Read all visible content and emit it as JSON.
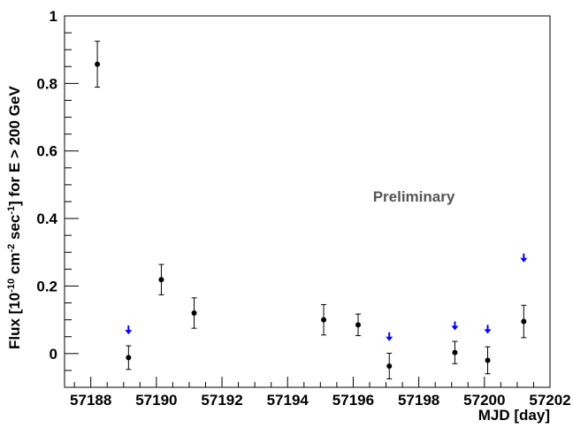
{
  "chart_data": {
    "type": "scatter",
    "title": "",
    "xlabel": "MJD [day]",
    "ylabel_parts": [
      "Flux [10",
      "-10",
      " cm",
      "-2",
      " sec",
      "-1",
      "] for E > 200 GeV"
    ],
    "xlim": [
      57187.2,
      57202
    ],
    "ylim": [
      -0.1,
      1.0
    ],
    "x_ticks": [
      57188,
      57190,
      57192,
      57194,
      57196,
      57198,
      57200,
      57202
    ],
    "x_tick_labels": [
      "57188",
      "57190",
      "57192",
      "57194",
      "57196",
      "57198",
      "57200",
      "57202"
    ],
    "y_ticks": [
      0,
      0.2,
      0.4,
      0.6,
      0.8,
      1.0
    ],
    "y_tick_labels": [
      "0",
      "0.2",
      "0.4",
      "0.6",
      "0.8",
      "1"
    ],
    "grid": false,
    "annotation": "Preliminary",
    "marker_color": "#000000",
    "upper_limit_color": "#0000ff",
    "series": [
      {
        "kind": "points_with_errors",
        "points": [
          {
            "x": 57188.2,
            "y": 0.857,
            "err": 0.068
          },
          {
            "x": 57189.15,
            "y": -0.012,
            "err": 0.035
          },
          {
            "x": 57190.15,
            "y": 0.219,
            "err": 0.045
          },
          {
            "x": 57191.15,
            "y": 0.12,
            "err": 0.045
          },
          {
            "x": 57195.1,
            "y": 0.1,
            "err": 0.045
          },
          {
            "x": 57196.15,
            "y": 0.085,
            "err": 0.032
          },
          {
            "x": 57197.1,
            "y": -0.037,
            "err": 0.038
          },
          {
            "x": 57199.1,
            "y": 0.003,
            "err": 0.033
          },
          {
            "x": 57200.1,
            "y": -0.02,
            "err": 0.04
          },
          {
            "x": 57201.2,
            "y": 0.095,
            "err": 0.048
          }
        ]
      },
      {
        "kind": "upper_limits",
        "points": [
          {
            "x": 57189.15,
            "y": 0.07
          },
          {
            "x": 57197.1,
            "y": 0.05
          },
          {
            "x": 57199.1,
            "y": 0.082
          },
          {
            "x": 57200.1,
            "y": 0.072
          },
          {
            "x": 57201.2,
            "y": 0.283
          }
        ]
      }
    ]
  }
}
